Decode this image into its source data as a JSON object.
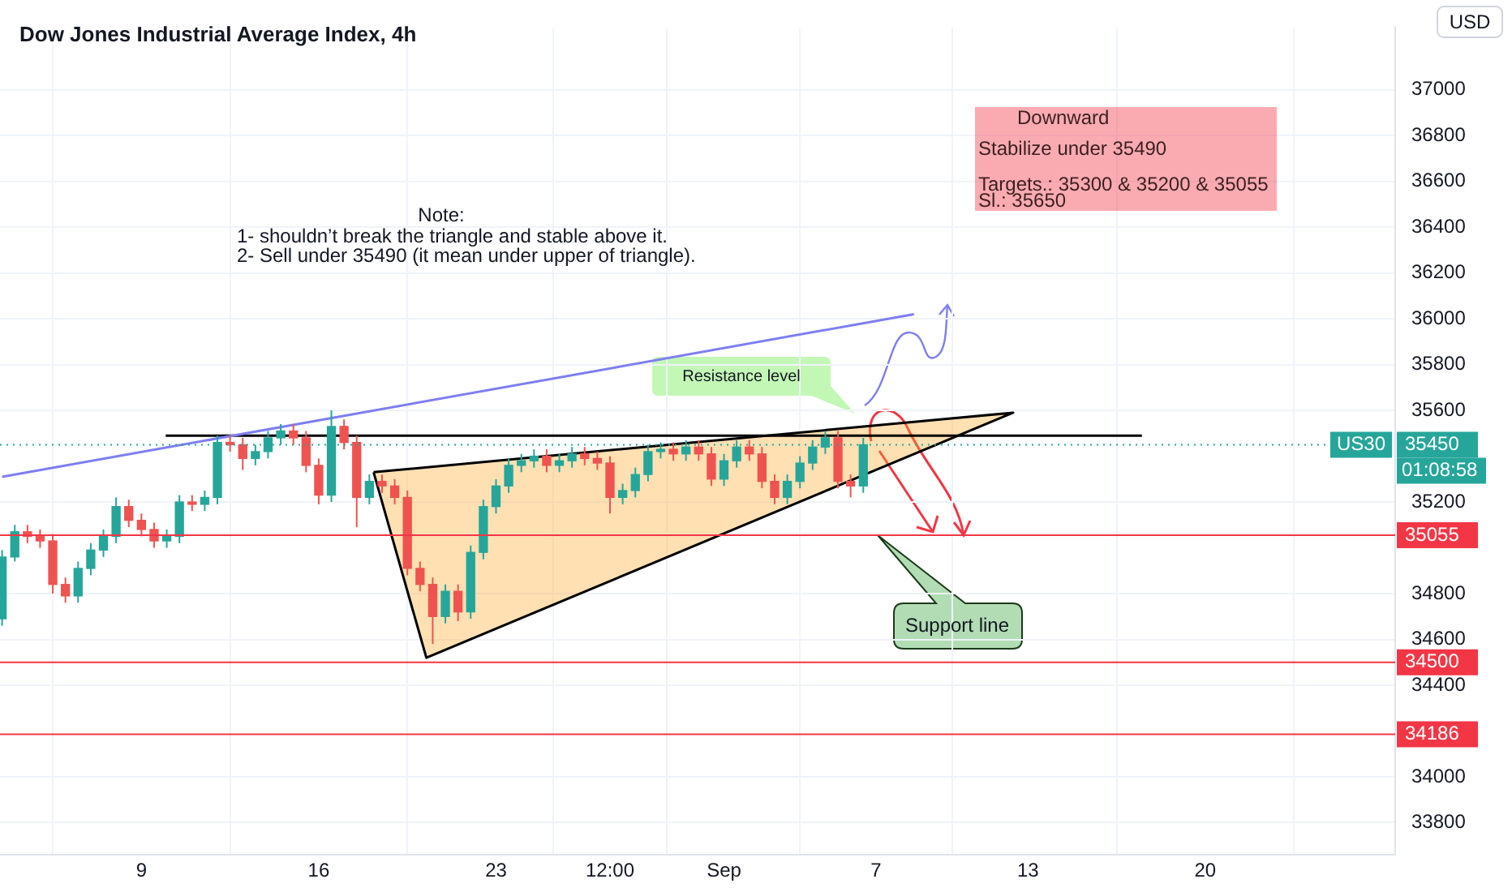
{
  "chart_data": {
    "type": "candlestick",
    "title": "Dow Jones Industrial Average Index, 4h",
    "x": [
      "--08-03T12:00",
      "--08-04",
      "--08-04T12:00",
      "--08-05",
      "--08-05T12:00",
      "--08-06",
      "--08-06T12:00",
      "--08-07",
      "--08-07T12:00",
      "--08-08",
      "--08-08T12:00",
      "--08-09",
      "--08-09T12:00",
      "--08-10",
      "--08-10T12:00",
      "--08-11",
      "--08-11T12:00",
      "--08-12",
      "--08-12T12:00",
      "--08-13",
      "--08-13T12:00",
      "--08-14",
      "--08-14T12:00",
      "--08-15",
      "--08-15T12:00",
      "--08-16",
      "--08-16T12:00",
      "--08-17",
      "--08-17T12:00",
      "--08-18",
      "--08-18T12:00",
      "--08-19",
      "--08-19T12:00",
      "--08-20",
      "--08-20T12:00",
      "--08-21",
      "--08-21T12:00",
      "--08-22",
      "--08-22T12:00",
      "--08-23",
      "--08-23T12:00",
      "--08-24",
      "--08-24T12:00",
      "--08-25",
      "--08-25T12:00",
      "--08-26",
      "--08-26T12:00",
      "--08-27",
      "--08-27T12:00",
      "--08-28",
      "--08-28T12:00",
      "--08-29",
      "--08-29T12:00",
      "--08-30",
      "--08-30T12:00",
      "--08-31",
      "--08-31T12:00",
      "--09-01",
      "--09-01T12:00",
      "--09-02",
      "--09-02T12:00",
      "--09-03",
      "--09-03T12:00",
      "--09-04",
      "--09-04T12:00",
      "--09-05",
      "--09-05T12:00",
      "--09-06",
      "--09-06T12:00"
    ],
    "ohlc": [
      [
        34690,
        34990,
        34660,
        34960
      ],
      [
        34960,
        35100,
        34940,
        35070
      ],
      [
        35070,
        35100,
        35020,
        35050
      ],
      [
        35050,
        35080,
        35000,
        35030
      ],
      [
        35030,
        35060,
        34800,
        34840
      ],
      [
        34840,
        34870,
        34760,
        34790
      ],
      [
        34790,
        34940,
        34760,
        34910
      ],
      [
        34910,
        35020,
        34880,
        34990
      ],
      [
        34990,
        35080,
        34960,
        35050
      ],
      [
        35050,
        35220,
        35020,
        35180
      ],
      [
        35180,
        35210,
        35090,
        35120
      ],
      [
        35120,
        35150,
        35050,
        35080
      ],
      [
        35080,
        35110,
        35000,
        35030
      ],
      [
        35030,
        35080,
        35000,
        35050
      ],
      [
        35050,
        35230,
        35020,
        35200
      ],
      [
        35200,
        35230,
        35160,
        35190
      ],
      [
        35190,
        35250,
        35160,
        35220
      ],
      [
        35220,
        35490,
        35190,
        35460
      ],
      [
        35460,
        35490,
        35420,
        35450
      ],
      [
        35450,
        35480,
        35340,
        35390
      ],
      [
        35390,
        35450,
        35360,
        35420
      ],
      [
        35420,
        35510,
        35390,
        35480
      ],
      [
        35480,
        35540,
        35450,
        35510
      ],
      [
        35510,
        35540,
        35450,
        35480
      ],
      [
        35480,
        35510,
        35330,
        35360
      ],
      [
        35360,
        35390,
        35190,
        35230
      ],
      [
        35230,
        35600,
        35200,
        35530
      ],
      [
        35530,
        35560,
        35430,
        35460
      ],
      [
        35460,
        35490,
        35090,
        35220
      ],
      [
        35220,
        35320,
        35190,
        35290
      ],
      [
        35290,
        35320,
        35240,
        35270
      ],
      [
        35270,
        35300,
        35190,
        35220
      ],
      [
        35220,
        35250,
        34880,
        34910
      ],
      [
        34910,
        34940,
        34810,
        34840
      ],
      [
        34840,
        34870,
        34580,
        34700
      ],
      [
        34700,
        34840,
        34670,
        34810
      ],
      [
        34810,
        34840,
        34680,
        34720
      ],
      [
        34720,
        35010,
        34690,
        34980
      ],
      [
        34980,
        35210,
        34950,
        35180
      ],
      [
        35180,
        35300,
        35150,
        35270
      ],
      [
        35270,
        35390,
        35240,
        35360
      ],
      [
        35360,
        35410,
        35330,
        35380
      ],
      [
        35380,
        35430,
        35350,
        35400
      ],
      [
        35400,
        35430,
        35330,
        35360
      ],
      [
        35360,
        35410,
        35330,
        35380
      ],
      [
        35380,
        35440,
        35350,
        35410
      ],
      [
        35410,
        35440,
        35360,
        35390
      ],
      [
        35390,
        35420,
        35340,
        35370
      ],
      [
        35370,
        35400,
        35150,
        35220
      ],
      [
        35220,
        35280,
        35190,
        35250
      ],
      [
        35250,
        35350,
        35220,
        35320
      ],
      [
        35320,
        35450,
        35290,
        35420
      ],
      [
        35420,
        35460,
        35390,
        35430
      ],
      [
        35430,
        35460,
        35380,
        35410
      ],
      [
        35410,
        35470,
        35380,
        35440
      ],
      [
        35440,
        35470,
        35380,
        35410
      ],
      [
        35410,
        35440,
        35270,
        35300
      ],
      [
        35300,
        35410,
        35270,
        35380
      ],
      [
        35380,
        35470,
        35350,
        35440
      ],
      [
        35440,
        35470,
        35380,
        35410
      ],
      [
        35410,
        35440,
        35260,
        35290
      ],
      [
        35290,
        35320,
        35190,
        35220
      ],
      [
        35220,
        35320,
        35190,
        35290
      ],
      [
        35290,
        35400,
        35260,
        35370
      ],
      [
        35370,
        35470,
        35340,
        35440
      ],
      [
        35440,
        35510,
        35410,
        35480
      ],
      [
        35480,
        35510,
        35260,
        35290
      ],
      [
        35290,
        35320,
        35220,
        35270
      ],
      [
        35270,
        35480,
        35240,
        35450
      ]
    ],
    "series": [
      {
        "type": "line",
        "color": "#7e7ef2",
        "x": [
          "--08-03T12:00",
          "--09-08T12:00"
        ],
        "values": [
          35310,
          36020
        ]
      },
      {
        "type": "line",
        "color": "#000000",
        "x": [
          "--08-09T23:00",
          "--09-17T12:00"
        ],
        "values": [
          35490,
          35490
        ]
      },
      {
        "type": "area",
        "color": "#000000",
        "x": [
          "--08-18T04:00",
          "--08-20T06:00",
          "--09-12T10:00",
          "--08-18T04:00"
        ],
        "values": [
          35330,
          34520,
          35590,
          35330
        ]
      }
    ],
    "marker": "none",
    "xlim": [
      "--08-03T10:00",
      "--09-27T12:00"
    ],
    "xticks": [
      {
        "value": "--08-09",
        "label": "9"
      },
      {
        "value": "--08-16",
        "label": "16"
      },
      {
        "value": "--08-23",
        "label": "23"
      },
      {
        "value": "--08-27T12:00",
        "label": "12:00"
      },
      {
        "value": "--09-01",
        "label": "Sep"
      },
      {
        "value": "--09-07",
        "label": "7"
      },
      {
        "value": "--09-13",
        "label": "13"
      },
      {
        "value": "--09-20",
        "label": "20"
      }
    ],
    "ylim": [
      33660,
      37270
    ],
    "yticks": [
      33800,
      34000,
      34400,
      34600,
      34800,
      35200,
      35600,
      35800,
      36000,
      36200,
      36400,
      36600,
      36800,
      37000
    ],
    "ref_lines": [
      {
        "axis": "y",
        "value": 35450,
        "label": "35450",
        "color": "#26a69a",
        "line_style": "dotted"
      },
      {
        "axis": "y",
        "value": 35055,
        "label": "35055",
        "color": "#f23645"
      },
      {
        "axis": "y",
        "value": 34500,
        "label": "34500",
        "color": "#f23645"
      },
      {
        "axis": "y",
        "value": 34186,
        "label": "34186",
        "color": "#f23645"
      }
    ],
    "annotations": [
      "Note:\n1- shouldn’t break the triangle and stable above it.\n2- Sell under 35490 (it mean under upper of triangle).",
      "Downward\nStabilize under 35490\nTargets.: 35300 & 35200 & 35055\nSl.: 35650",
      "Resistance level",
      "Support line",
      "US30",
      "01:08:58",
      "USD"
    ],
    "grid": true,
    "legend": false
  }
}
